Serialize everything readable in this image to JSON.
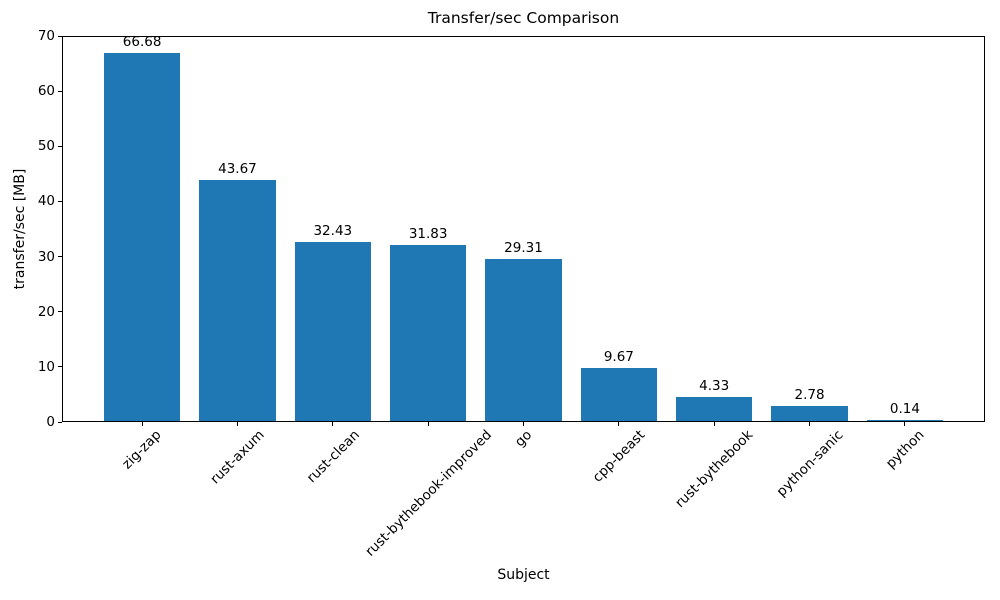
{
  "chart_data": {
    "type": "bar",
    "title": "Transfer/sec Comparison",
    "xlabel": "Subject",
    "ylabel": "transfer/sec [MB]",
    "categories": [
      "zig-zap",
      "rust-axum",
      "rust-clean",
      "rust-bythebook-improved",
      "go",
      "cpp-beast",
      "rust-bythebook",
      "python-sanic",
      "python"
    ],
    "values": [
      66.68,
      43.67,
      32.43,
      31.83,
      29.31,
      9.67,
      4.33,
      2.78,
      0.14
    ],
    "value_labels": [
      "66.68",
      "43.67",
      "32.43",
      "31.83",
      "29.31",
      "9.67",
      "4.33",
      "2.78",
      "0.14"
    ],
    "ylim": [
      0,
      70
    ],
    "yticks": [
      0,
      10,
      20,
      30,
      40,
      50,
      60,
      70
    ],
    "bar_color": "#1f77b4",
    "grid": false,
    "legend": null
  }
}
